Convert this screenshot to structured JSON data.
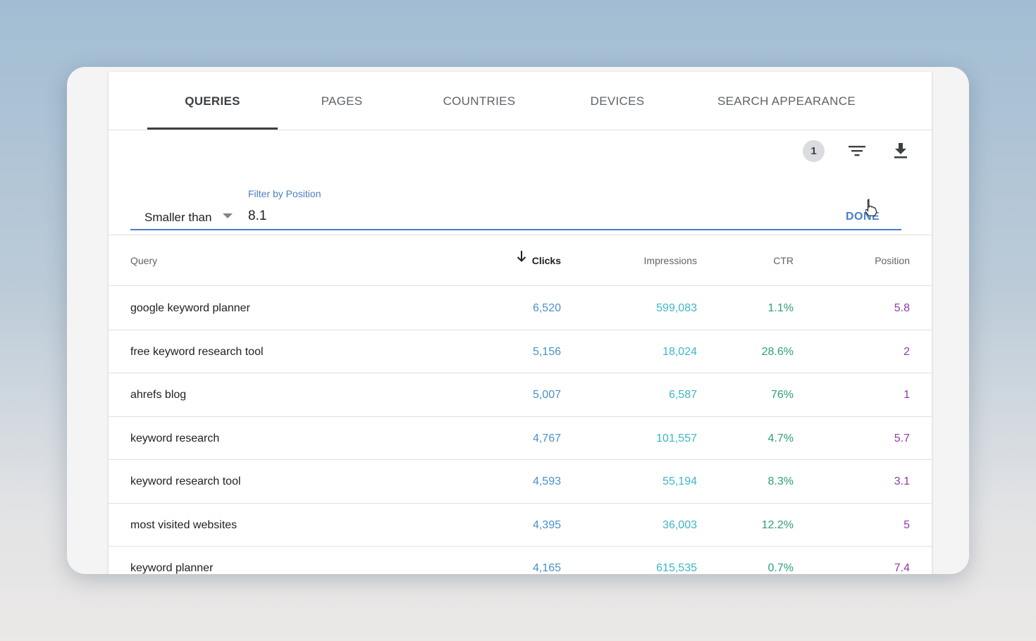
{
  "tabs": [
    "QUERIES",
    "PAGES",
    "COUNTRIES",
    "DEVICES",
    "SEARCH APPEARANCE"
  ],
  "active_tab": "QUERIES",
  "toolbar": {
    "filter_count": "1",
    "icons": [
      "filter-icon",
      "download-icon"
    ]
  },
  "filter": {
    "label": "Filter by Position",
    "operator": "Smaller than",
    "value": "8.1",
    "done_label": "DONE"
  },
  "table": {
    "columns": [
      "Query",
      "Clicks",
      "Impressions",
      "CTR",
      "Position"
    ],
    "sorted_column": "Clicks",
    "sort_direction": "descending",
    "rows": [
      {
        "query": "google keyword planner",
        "clicks": "6,520",
        "impressions": "599,083",
        "ctr": "1.1%",
        "position": "5.8"
      },
      {
        "query": "free keyword research tool",
        "clicks": "5,156",
        "impressions": "18,024",
        "ctr": "28.6%",
        "position": "2"
      },
      {
        "query": "ahrefs blog",
        "clicks": "5,007",
        "impressions": "6,587",
        "ctr": "76%",
        "position": "1"
      },
      {
        "query": "keyword research",
        "clicks": "4,767",
        "impressions": "101,557",
        "ctr": "4.7%",
        "position": "5.7"
      },
      {
        "query": "keyword research tool",
        "clicks": "4,593",
        "impressions": "55,194",
        "ctr": "8.3%",
        "position": "3.1"
      },
      {
        "query": "most visited websites",
        "clicks": "4,395",
        "impressions": "36,003",
        "ctr": "12.2%",
        "position": "5"
      },
      {
        "query": "keyword planner",
        "clicks": "4,165",
        "impressions": "615,535",
        "ctr": "0.7%",
        "position": "7.4"
      }
    ]
  },
  "colors": {
    "clicks": "#4a90c8",
    "impressions": "#3cb7c4",
    "ctr": "#2f9e79",
    "position": "#8e3aa6",
    "accent": "#4a7fc1"
  }
}
